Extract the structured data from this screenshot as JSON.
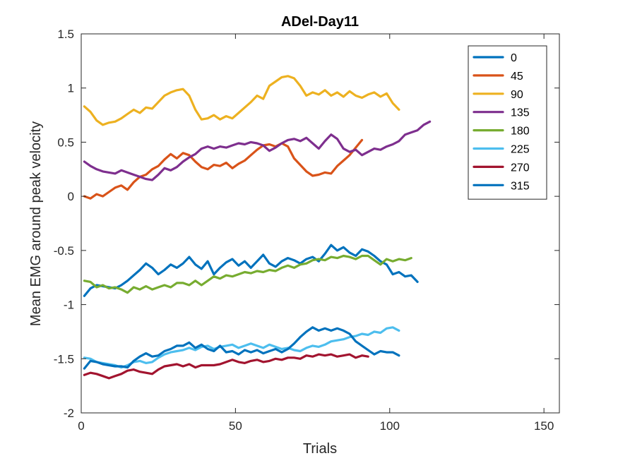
{
  "chart_data": {
    "type": "line",
    "title": "ADel-Day11",
    "xlabel": "Trials",
    "ylabel": "Mean EMG around peak velocity",
    "xlim": [
      0,
      155
    ],
    "ylim": [
      -2,
      1.5
    ],
    "xticks": [
      0,
      50,
      100,
      150
    ],
    "xtick_labels": [
      "0",
      "50",
      "100",
      "150"
    ],
    "yticks": [
      -2,
      -1.5,
      -1,
      -0.5,
      0,
      0.5,
      1,
      1.5
    ],
    "ytick_labels": [
      "-2",
      "-1.5",
      "-1",
      "-0.5",
      "0",
      "0.5",
      "1",
      "1.5"
    ],
    "grid": false,
    "legend_position": "top-right",
    "series": [
      {
        "name": "0",
        "color": "#0072BD",
        "x": [
          1,
          3,
          5,
          7,
          9,
          11,
          13,
          15,
          17,
          19,
          21,
          23,
          25,
          27,
          29,
          31,
          33,
          35,
          37,
          39,
          41,
          43,
          45,
          47,
          49,
          51,
          53,
          55,
          57,
          59,
          61,
          63,
          65,
          67,
          69,
          71,
          73,
          75,
          77,
          79,
          81,
          83,
          85,
          87,
          89,
          91,
          93,
          95,
          97,
          99,
          101,
          103,
          105,
          107,
          109
        ],
        "y": [
          -0.92,
          -0.85,
          -0.82,
          -0.83,
          -0.84,
          -0.85,
          -0.82,
          -0.78,
          -0.73,
          -0.68,
          -0.62,
          -0.66,
          -0.72,
          -0.68,
          -0.63,
          -0.66,
          -0.62,
          -0.56,
          -0.63,
          -0.67,
          -0.6,
          -0.72,
          -0.66,
          -0.61,
          -0.58,
          -0.64,
          -0.6,
          -0.66,
          -0.6,
          -0.54,
          -0.62,
          -0.65,
          -0.6,
          -0.57,
          -0.59,
          -0.62,
          -0.58,
          -0.56,
          -0.6,
          -0.53,
          -0.45,
          -0.5,
          -0.47,
          -0.52,
          -0.55,
          -0.49,
          -0.51,
          -0.55,
          -0.6,
          -0.63,
          -0.72,
          -0.7,
          -0.74,
          -0.73,
          -0.79
        ]
      },
      {
        "name": "45",
        "color": "#D95319",
        "x": [
          1,
          3,
          5,
          7,
          9,
          11,
          13,
          15,
          17,
          19,
          21,
          23,
          25,
          27,
          29,
          31,
          33,
          35,
          37,
          39,
          41,
          43,
          45,
          47,
          49,
          51,
          53,
          55,
          57,
          59,
          61,
          63,
          65,
          67,
          69,
          71,
          73,
          75,
          77,
          79,
          81,
          83,
          85,
          87,
          89,
          91
        ],
        "y": [
          0.0,
          -0.02,
          0.02,
          0.0,
          0.04,
          0.08,
          0.1,
          0.06,
          0.13,
          0.18,
          0.2,
          0.25,
          0.28,
          0.34,
          0.39,
          0.35,
          0.4,
          0.38,
          0.32,
          0.27,
          0.25,
          0.29,
          0.28,
          0.31,
          0.26,
          0.3,
          0.33,
          0.38,
          0.43,
          0.47,
          0.48,
          0.46,
          0.49,
          0.46,
          0.35,
          0.29,
          0.23,
          0.19,
          0.2,
          0.22,
          0.21,
          0.28,
          0.33,
          0.38,
          0.45,
          0.52
        ]
      },
      {
        "name": "90",
        "color": "#EDB120",
        "x": [
          1,
          3,
          5,
          7,
          9,
          11,
          13,
          15,
          17,
          19,
          21,
          23,
          25,
          27,
          29,
          31,
          33,
          35,
          37,
          39,
          41,
          43,
          45,
          47,
          49,
          51,
          53,
          55,
          57,
          59,
          61,
          63,
          65,
          67,
          69,
          71,
          73,
          75,
          77,
          79,
          81,
          83,
          85,
          87,
          89,
          91,
          93,
          95,
          97,
          99,
          101,
          103
        ],
        "y": [
          0.83,
          0.78,
          0.7,
          0.66,
          0.68,
          0.69,
          0.72,
          0.76,
          0.8,
          0.77,
          0.82,
          0.81,
          0.87,
          0.93,
          0.96,
          0.98,
          0.99,
          0.93,
          0.8,
          0.71,
          0.72,
          0.75,
          0.71,
          0.74,
          0.72,
          0.77,
          0.82,
          0.87,
          0.93,
          0.9,
          1.02,
          1.06,
          1.1,
          1.11,
          1.09,
          1.02,
          0.93,
          0.96,
          0.94,
          0.98,
          0.93,
          0.96,
          0.92,
          0.97,
          0.93,
          0.91,
          0.94,
          0.96,
          0.92,
          0.95,
          0.86,
          0.8
        ]
      },
      {
        "name": "135",
        "color": "#7E2F8E",
        "x": [
          1,
          3,
          5,
          7,
          9,
          11,
          13,
          15,
          17,
          19,
          21,
          23,
          25,
          27,
          29,
          31,
          33,
          35,
          37,
          39,
          41,
          43,
          45,
          47,
          49,
          51,
          53,
          55,
          57,
          59,
          61,
          63,
          65,
          67,
          69,
          71,
          73,
          75,
          77,
          79,
          81,
          83,
          85,
          87,
          89,
          91,
          93,
          95,
          97,
          99,
          101,
          103,
          105,
          107,
          109,
          111,
          113
        ],
        "y": [
          0.32,
          0.28,
          0.25,
          0.23,
          0.22,
          0.21,
          0.24,
          0.22,
          0.2,
          0.18,
          0.16,
          0.15,
          0.2,
          0.26,
          0.24,
          0.27,
          0.32,
          0.36,
          0.39,
          0.44,
          0.46,
          0.44,
          0.46,
          0.45,
          0.47,
          0.49,
          0.48,
          0.5,
          0.49,
          0.47,
          0.42,
          0.45,
          0.49,
          0.52,
          0.53,
          0.51,
          0.54,
          0.49,
          0.44,
          0.51,
          0.57,
          0.53,
          0.44,
          0.41,
          0.43,
          0.38,
          0.41,
          0.44,
          0.43,
          0.46,
          0.48,
          0.51,
          0.57,
          0.59,
          0.61,
          0.66,
          0.69
        ]
      },
      {
        "name": "180",
        "color": "#77AC30",
        "x": [
          1,
          3,
          5,
          7,
          9,
          11,
          13,
          15,
          17,
          19,
          21,
          23,
          25,
          27,
          29,
          31,
          33,
          35,
          37,
          39,
          41,
          43,
          45,
          47,
          49,
          51,
          53,
          55,
          57,
          59,
          61,
          63,
          65,
          67,
          69,
          71,
          73,
          75,
          77,
          79,
          81,
          83,
          85,
          87,
          89,
          91,
          93,
          95,
          97,
          99,
          101,
          103,
          105,
          107
        ],
        "y": [
          -0.78,
          -0.79,
          -0.84,
          -0.82,
          -0.85,
          -0.84,
          -0.86,
          -0.89,
          -0.84,
          -0.86,
          -0.83,
          -0.86,
          -0.84,
          -0.82,
          -0.84,
          -0.8,
          -0.8,
          -0.82,
          -0.78,
          -0.82,
          -0.78,
          -0.74,
          -0.76,
          -0.73,
          -0.74,
          -0.72,
          -0.7,
          -0.71,
          -0.69,
          -0.7,
          -0.68,
          -0.69,
          -0.66,
          -0.64,
          -0.66,
          -0.63,
          -0.62,
          -0.59,
          -0.58,
          -0.59,
          -0.56,
          -0.57,
          -0.55,
          -0.56,
          -0.58,
          -0.55,
          -0.55,
          -0.59,
          -0.63,
          -0.58,
          -0.6,
          -0.58,
          -0.59,
          -0.57
        ]
      },
      {
        "name": "225",
        "color": "#4DBEEE",
        "x": [
          1,
          3,
          5,
          7,
          9,
          11,
          13,
          15,
          17,
          19,
          21,
          23,
          25,
          27,
          29,
          31,
          33,
          35,
          37,
          39,
          41,
          43,
          45,
          47,
          49,
          51,
          53,
          55,
          57,
          59,
          61,
          63,
          65,
          67,
          69,
          71,
          73,
          75,
          77,
          79,
          81,
          83,
          85,
          87,
          89,
          91,
          93,
          95,
          97,
          99,
          101,
          103
        ],
        "y": [
          -1.49,
          -1.5,
          -1.53,
          -1.54,
          -1.55,
          -1.56,
          -1.58,
          -1.56,
          -1.53,
          -1.52,
          -1.54,
          -1.53,
          -1.49,
          -1.46,
          -1.44,
          -1.43,
          -1.42,
          -1.4,
          -1.42,
          -1.39,
          -1.38,
          -1.41,
          -1.39,
          -1.38,
          -1.37,
          -1.4,
          -1.38,
          -1.36,
          -1.38,
          -1.4,
          -1.37,
          -1.39,
          -1.41,
          -1.4,
          -1.42,
          -1.43,
          -1.4,
          -1.38,
          -1.39,
          -1.37,
          -1.34,
          -1.33,
          -1.32,
          -1.3,
          -1.29,
          -1.27,
          -1.28,
          -1.25,
          -1.26,
          -1.22,
          -1.21,
          -1.24
        ]
      },
      {
        "name": "270",
        "color": "#A2142F",
        "x": [
          1,
          3,
          5,
          7,
          9,
          11,
          13,
          15,
          17,
          19,
          21,
          23,
          25,
          27,
          29,
          31,
          33,
          35,
          37,
          39,
          41,
          43,
          45,
          47,
          49,
          51,
          53,
          55,
          57,
          59,
          61,
          63,
          65,
          67,
          69,
          71,
          73,
          75,
          77,
          79,
          81,
          83,
          85,
          87,
          89,
          91,
          93
        ],
        "y": [
          -1.65,
          -1.63,
          -1.64,
          -1.66,
          -1.68,
          -1.66,
          -1.64,
          -1.61,
          -1.6,
          -1.62,
          -1.63,
          -1.64,
          -1.6,
          -1.57,
          -1.56,
          -1.55,
          -1.57,
          -1.55,
          -1.58,
          -1.56,
          -1.56,
          -1.56,
          -1.55,
          -1.53,
          -1.51,
          -1.53,
          -1.54,
          -1.52,
          -1.51,
          -1.53,
          -1.52,
          -1.5,
          -1.51,
          -1.49,
          -1.49,
          -1.5,
          -1.47,
          -1.48,
          -1.46,
          -1.47,
          -1.46,
          -1.48,
          -1.47,
          -1.46,
          -1.49,
          -1.47,
          -1.48
        ]
      },
      {
        "name": "315",
        "color": "#0072BD",
        "x": [
          1,
          3,
          5,
          7,
          9,
          11,
          13,
          15,
          17,
          19,
          21,
          23,
          25,
          27,
          29,
          31,
          33,
          35,
          37,
          39,
          41,
          43,
          45,
          47,
          49,
          51,
          53,
          55,
          57,
          59,
          61,
          63,
          65,
          67,
          69,
          71,
          73,
          75,
          77,
          79,
          81,
          83,
          85,
          87,
          89,
          91,
          93,
          95,
          97,
          99,
          101,
          103
        ],
        "y": [
          -1.59,
          -1.52,
          -1.53,
          -1.55,
          -1.56,
          -1.57,
          -1.57,
          -1.58,
          -1.52,
          -1.48,
          -1.45,
          -1.48,
          -1.47,
          -1.43,
          -1.41,
          -1.38,
          -1.38,
          -1.35,
          -1.4,
          -1.37,
          -1.41,
          -1.43,
          -1.38,
          -1.44,
          -1.43,
          -1.46,
          -1.42,
          -1.44,
          -1.42,
          -1.45,
          -1.43,
          -1.41,
          -1.44,
          -1.41,
          -1.36,
          -1.3,
          -1.25,
          -1.21,
          -1.24,
          -1.22,
          -1.24,
          -1.22,
          -1.24,
          -1.27,
          -1.34,
          -1.38,
          -1.42,
          -1.46,
          -1.43,
          -1.44,
          -1.44,
          -1.47
        ]
      }
    ]
  }
}
